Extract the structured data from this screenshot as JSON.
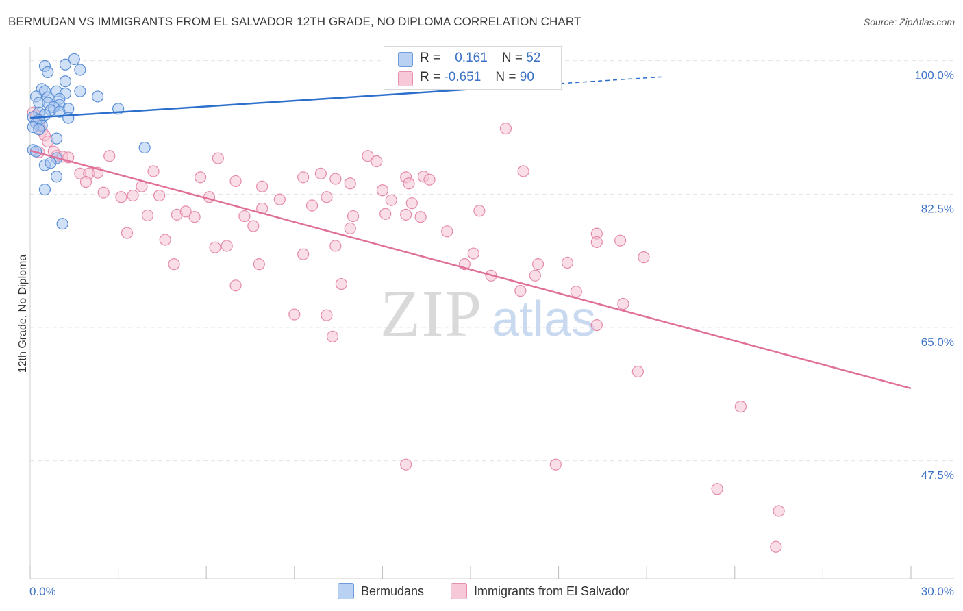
{
  "title": "BERMUDAN VS IMMIGRANTS FROM EL SALVADOR 12TH GRADE, NO DIPLOMA CORRELATION CHART",
  "source": "Source: ZipAtlas.com",
  "watermark": {
    "zip": "ZIP",
    "atlas": "atlas"
  },
  "stats": {
    "row1": {
      "r_label": "R =",
      "r_value": "0.161",
      "n_label": "N =",
      "n_value": "52"
    },
    "row2": {
      "r_label": "R =",
      "r_value": "-0.651",
      "n_label": "N =",
      "n_value": "90"
    }
  },
  "legend": {
    "series1": "Bermudans",
    "series2": "Immigrants from El Salvador"
  },
  "colors": {
    "blue_fill": "#a9c6ee",
    "blue_stroke": "#5a8fd6",
    "blue_line": "#2c6fcd",
    "pink_fill": "#f6c3d3",
    "pink_stroke": "#e58aaa",
    "pink_line": "#e0709a",
    "grid": "#e4e4e4",
    "tick_text": "#3d72c7"
  },
  "chart_data": {
    "type": "scatter",
    "title": "BERMUDAN VS IMMIGRANTS FROM EL SALVADOR 12TH GRADE, NO DIPLOMA CORRELATION CHART",
    "xlabel": "",
    "ylabel": "12th Grade, No Diploma",
    "xlim": [
      0,
      30
    ],
    "ylim": [
      32,
      101.5
    ],
    "x_tick_labels": [
      "0.0%",
      "30.0%"
    ],
    "y_ticks": [
      47.5,
      65.0,
      82.5,
      100.0
    ],
    "y_tick_labels": [
      "47.5%",
      "65.0%",
      "82.5%",
      "100.0%"
    ],
    "grid": true,
    "series": [
      {
        "name": "Bermudans",
        "R": 0.161,
        "N": 52,
        "trend": {
          "x": [
            0,
            30
          ],
          "y": [
            92.5,
            100.0
          ],
          "solid_until_x": 15.5
        },
        "points": [
          [
            0.5,
            99.3
          ],
          [
            1.2,
            99.5
          ],
          [
            1.5,
            100.2
          ],
          [
            0.6,
            98.5
          ],
          [
            1.7,
            98.8
          ],
          [
            1.2,
            97.3
          ],
          [
            0.4,
            96.3
          ],
          [
            0.5,
            96.0
          ],
          [
            0.9,
            96.0
          ],
          [
            1.7,
            96.0
          ],
          [
            1.2,
            95.7
          ],
          [
            0.2,
            95.3
          ],
          [
            0.6,
            95.2
          ],
          [
            1.0,
            95.0
          ],
          [
            2.3,
            95.3
          ],
          [
            0.3,
            94.5
          ],
          [
            0.6,
            94.5
          ],
          [
            1.0,
            94.2
          ],
          [
            0.8,
            93.9
          ],
          [
            1.3,
            93.7
          ],
          [
            3.0,
            93.7
          ],
          [
            0.7,
            93.5
          ],
          [
            1.0,
            93.3
          ],
          [
            0.3,
            93.2
          ],
          [
            0.5,
            92.9
          ],
          [
            0.1,
            92.6
          ],
          [
            1.3,
            92.5
          ],
          [
            0.3,
            92.2
          ],
          [
            0.2,
            91.8
          ],
          [
            0.4,
            91.5
          ],
          [
            0.1,
            91.3
          ],
          [
            0.3,
            91.0
          ],
          [
            0.9,
            89.8
          ],
          [
            3.9,
            88.6
          ],
          [
            0.1,
            88.3
          ],
          [
            0.2,
            88.1
          ],
          [
            0.9,
            87.2
          ],
          [
            0.5,
            86.3
          ],
          [
            0.7,
            86.6
          ],
          [
            0.9,
            84.8
          ],
          [
            0.5,
            83.1
          ],
          [
            1.1,
            78.6
          ]
        ]
      },
      {
        "name": "Immigrants from El Salvador",
        "R": -0.651,
        "N": 90,
        "trend": {
          "x": [
            0,
            30
          ],
          "y": [
            88.2,
            57.0
          ]
        },
        "points": [
          [
            0.1,
            93.2
          ],
          [
            0.2,
            92.8
          ],
          [
            0.3,
            91.5
          ],
          [
            0.4,
            90.8
          ],
          [
            0.5,
            90.2
          ],
          [
            0.6,
            89.4
          ],
          [
            0.3,
            88.0
          ],
          [
            0.8,
            88.1
          ],
          [
            0.9,
            87.5
          ],
          [
            1.1,
            87.4
          ],
          [
            1.3,
            87.3
          ],
          [
            2.7,
            87.5
          ],
          [
            6.4,
            87.2
          ],
          [
            11.5,
            87.5
          ],
          [
            11.8,
            86.8
          ],
          [
            16.2,
            91.1
          ],
          [
            1.7,
            85.2
          ],
          [
            2.0,
            85.2
          ],
          [
            2.3,
            85.3
          ],
          [
            4.2,
            85.5
          ],
          [
            5.8,
            84.7
          ],
          [
            7.0,
            84.2
          ],
          [
            9.3,
            84.7
          ],
          [
            9.9,
            85.2
          ],
          [
            10.4,
            84.5
          ],
          [
            12.8,
            84.7
          ],
          [
            13.4,
            84.8
          ],
          [
            13.6,
            84.4
          ],
          [
            16.8,
            85.5
          ],
          [
            1.9,
            84.1
          ],
          [
            7.9,
            83.5
          ],
          [
            10.9,
            83.9
          ],
          [
            12.0,
            83.0
          ],
          [
            12.9,
            83.9
          ],
          [
            2.5,
            82.7
          ],
          [
            3.1,
            82.1
          ],
          [
            3.5,
            82.3
          ],
          [
            3.8,
            83.5
          ],
          [
            4.4,
            82.3
          ],
          [
            6.1,
            82.1
          ],
          [
            8.5,
            81.8
          ],
          [
            10.1,
            82.1
          ],
          [
            12.3,
            81.7
          ],
          [
            13.0,
            81.3
          ],
          [
            4.0,
            79.7
          ],
          [
            5.0,
            79.8
          ],
          [
            5.3,
            80.2
          ],
          [
            5.6,
            79.5
          ],
          [
            7.3,
            79.6
          ],
          [
            7.9,
            80.6
          ],
          [
            9.6,
            81.0
          ],
          [
            11.0,
            79.6
          ],
          [
            12.1,
            79.9
          ],
          [
            12.8,
            79.8
          ],
          [
            13.3,
            79.5
          ],
          [
            15.3,
            80.3
          ],
          [
            3.3,
            77.4
          ],
          [
            4.6,
            76.5
          ],
          [
            6.3,
            75.5
          ],
          [
            6.7,
            75.7
          ],
          [
            7.6,
            78.3
          ],
          [
            9.3,
            74.6
          ],
          [
            10.4,
            75.7
          ],
          [
            10.9,
            78.0
          ],
          [
            14.2,
            77.6
          ],
          [
            15.1,
            74.7
          ],
          [
            17.3,
            73.3
          ],
          [
            18.3,
            73.5
          ],
          [
            19.3,
            77.3
          ],
          [
            19.3,
            76.2
          ],
          [
            20.1,
            76.4
          ],
          [
            20.9,
            74.2
          ],
          [
            4.9,
            73.3
          ],
          [
            7.8,
            73.3
          ],
          [
            10.6,
            70.7
          ],
          [
            14.8,
            73.3
          ],
          [
            15.7,
            71.8
          ],
          [
            16.7,
            69.8
          ],
          [
            17.2,
            71.8
          ],
          [
            7.0,
            70.5
          ],
          [
            18.6,
            69.7
          ],
          [
            19.3,
            65.3
          ],
          [
            20.2,
            68.1
          ],
          [
            9.0,
            66.7
          ],
          [
            10.1,
            66.6
          ],
          [
            10.3,
            63.8
          ],
          [
            20.7,
            59.2
          ],
          [
            24.2,
            54.6
          ],
          [
            12.8,
            47.0
          ],
          [
            17.9,
            47.0
          ],
          [
            23.4,
            43.8
          ],
          [
            25.5,
            40.9
          ],
          [
            25.4,
            36.2
          ]
        ]
      }
    ]
  }
}
